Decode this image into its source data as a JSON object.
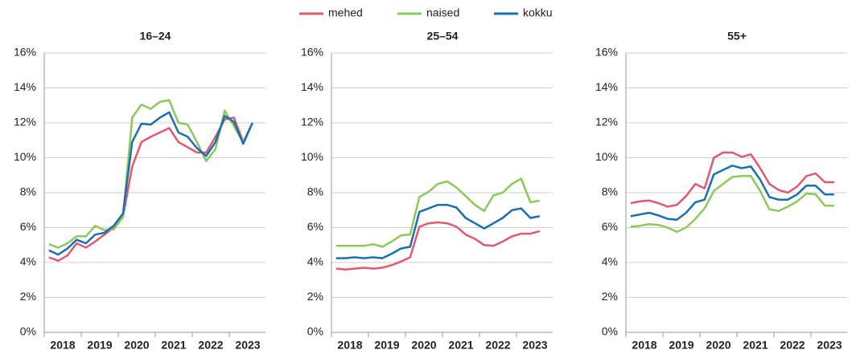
{
  "chart_data": [
    {
      "type": "line",
      "title": "16–24",
      "categories": [
        null,
        "2018",
        null,
        null,
        null,
        "2019",
        null,
        null,
        null,
        "2020",
        null,
        null,
        null,
        "2021",
        null,
        null,
        null,
        "2022",
        null,
        null,
        null,
        "2023",
        null
      ],
      "series": [
        {
          "name": "mehed",
          "color": "#e05a6e",
          "values": [
            4.3,
            4.1,
            4.4,
            5.1,
            4.85,
            5.2,
            5.6,
            6.0,
            6.6,
            9.5,
            10.9,
            11.2,
            11.45,
            11.7,
            10.9,
            10.6,
            10.3,
            10.3,
            11.2,
            12.2,
            12.3,
            10.9,
            12.0
          ]
        },
        {
          "name": "naised",
          "color": "#8cc85a",
          "values": [
            5.05,
            4.85,
            5.1,
            5.5,
            5.5,
            6.1,
            5.85,
            5.9,
            6.6,
            12.3,
            13.05,
            12.8,
            13.2,
            13.3,
            12.0,
            11.9,
            10.9,
            9.8,
            10.5,
            12.7,
            11.8,
            10.9,
            12.0
          ]
        },
        {
          "name": "kokku",
          "color": "#1a6fad",
          "values": [
            4.7,
            4.45,
            4.8,
            5.3,
            5.1,
            5.6,
            5.7,
            6.1,
            6.8,
            10.9,
            11.95,
            11.9,
            12.3,
            12.6,
            11.45,
            11.2,
            10.55,
            10.1,
            10.9,
            12.4,
            12.05,
            10.8,
            12.0
          ]
        }
      ],
      "ylim": [
        0,
        16
      ],
      "yticks": [
        {
          "value": 0,
          "label": "0%"
        },
        {
          "value": 2,
          "label": "2%"
        },
        {
          "value": 4,
          "label": "4%"
        },
        {
          "value": 6,
          "label": "6%"
        },
        {
          "value": 8,
          "label": "8%"
        },
        {
          "value": 10,
          "label": "10%"
        },
        {
          "value": 12,
          "label": "12%"
        },
        {
          "value": 14,
          "label": "14%"
        },
        {
          "value": 16,
          "label": "16%"
        }
      ],
      "grid": true
    },
    {
      "type": "line",
      "title": "25–54",
      "categories": [
        null,
        "2018",
        null,
        null,
        null,
        "2019",
        null,
        null,
        null,
        "2020",
        null,
        null,
        null,
        "2021",
        null,
        null,
        null,
        "2022",
        null,
        null,
        null,
        "2023",
        null
      ],
      "series": [
        {
          "name": "mehed",
          "color": "#e05a6e",
          "values": [
            3.65,
            3.6,
            3.65,
            3.7,
            3.65,
            3.7,
            3.85,
            4.05,
            4.3,
            6.05,
            6.25,
            6.3,
            6.25,
            6.05,
            5.6,
            5.35,
            5.0,
            4.95,
            5.2,
            5.5,
            5.65,
            5.65,
            5.8
          ]
        },
        {
          "name": "naised",
          "color": "#8cc85a",
          "values": [
            4.95,
            4.95,
            4.95,
            4.95,
            5.05,
            4.9,
            5.2,
            5.55,
            5.6,
            7.75,
            8.05,
            8.5,
            8.65,
            8.3,
            7.8,
            7.3,
            6.95,
            7.85,
            8.0,
            8.5,
            8.8,
            7.45,
            7.55
          ]
        },
        {
          "name": "kokku",
          "color": "#1a6fad",
          "values": [
            4.25,
            4.25,
            4.3,
            4.25,
            4.3,
            4.25,
            4.5,
            4.8,
            4.9,
            6.9,
            7.1,
            7.3,
            7.3,
            7.15,
            6.55,
            6.25,
            5.95,
            6.25,
            6.55,
            7.0,
            7.1,
            6.55,
            6.65
          ]
        }
      ],
      "ylim": [
        0,
        16
      ],
      "yticks": [
        {
          "value": 0,
          "label": "0%"
        },
        {
          "value": 2,
          "label": "2%"
        },
        {
          "value": 4,
          "label": "4%"
        },
        {
          "value": 6,
          "label": "6%"
        },
        {
          "value": 8,
          "label": "8%"
        },
        {
          "value": 10,
          "label": "10%"
        },
        {
          "value": 12,
          "label": "12%"
        },
        {
          "value": 14,
          "label": "14%"
        },
        {
          "value": 16,
          "label": "16%"
        }
      ],
      "grid": true
    },
    {
      "type": "line",
      "title": "55+",
      "categories": [
        null,
        "2018",
        null,
        null,
        null,
        "2019",
        null,
        null,
        null,
        "2020",
        null,
        null,
        null,
        "2021",
        null,
        null,
        null,
        "2022",
        null,
        null,
        null,
        "2023",
        null
      ],
      "series": [
        {
          "name": "mehed",
          "color": "#e05a6e",
          "values": [
            7.4,
            7.5,
            7.55,
            7.4,
            7.2,
            7.3,
            7.8,
            8.5,
            8.25,
            10.0,
            10.3,
            10.3,
            10.05,
            10.2,
            9.4,
            8.5,
            8.15,
            8.0,
            8.35,
            8.95,
            9.1,
            8.6,
            8.6
          ]
        },
        {
          "name": "naised",
          "color": "#8cc85a",
          "values": [
            6.05,
            6.1,
            6.2,
            6.15,
            6.0,
            5.75,
            6.0,
            6.5,
            7.1,
            8.1,
            8.5,
            8.9,
            8.95,
            8.95,
            8.1,
            7.05,
            6.95,
            7.2,
            7.5,
            7.95,
            7.9,
            7.25,
            7.25
          ]
        },
        {
          "name": "kokku",
          "color": "#1a6fad",
          "values": [
            6.65,
            6.75,
            6.85,
            6.7,
            6.5,
            6.45,
            6.85,
            7.45,
            7.6,
            9.05,
            9.3,
            9.55,
            9.4,
            9.5,
            8.75,
            7.75,
            7.6,
            7.6,
            7.9,
            8.4,
            8.4,
            7.9,
            7.9
          ]
        }
      ],
      "ylim": [
        0,
        16
      ],
      "yticks": [
        {
          "value": 0,
          "label": "0%"
        },
        {
          "value": 2,
          "label": "2%"
        },
        {
          "value": 4,
          "label": "4%"
        },
        {
          "value": 6,
          "label": "6%"
        },
        {
          "value": 8,
          "label": "8%"
        },
        {
          "value": 10,
          "label": "10%"
        },
        {
          "value": 12,
          "label": "12%"
        },
        {
          "value": 14,
          "label": "14%"
        },
        {
          "value": 16,
          "label": "16%"
        }
      ],
      "grid": true
    }
  ]
}
